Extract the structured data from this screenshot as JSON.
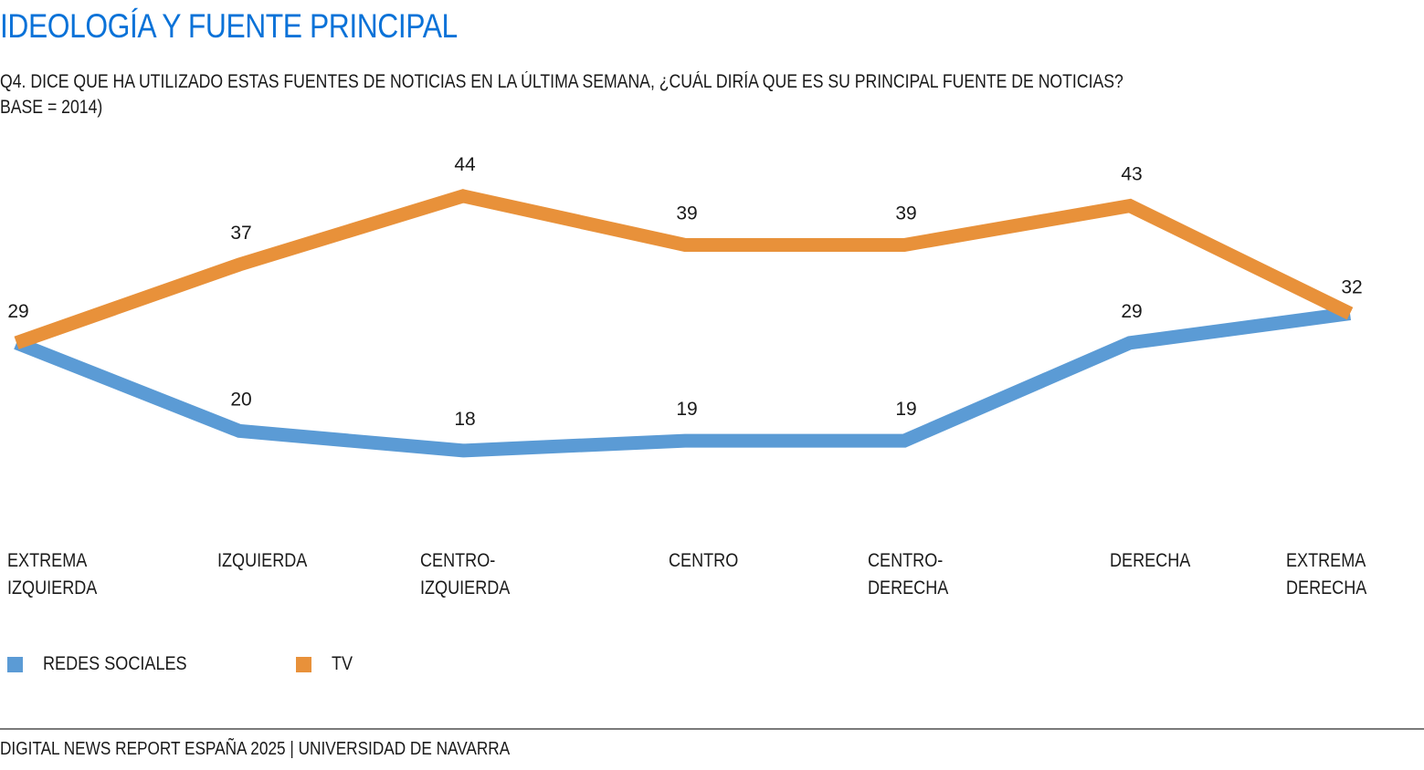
{
  "header": {
    "title": "IDEOLOGÍA Y FUENTE PRINCIPAL",
    "question": "Q4. DICE QUE HA UTILIZADO ESTAS FUENTES DE NOTICIAS EN LA ÚLTIMA SEMANA, ¿CUÁL DIRÍA QUE ES SU PRINCIPAL FUENTE DE NOTICIAS?",
    "base": "BASE = 2014)"
  },
  "footer": {
    "source": "DIGITAL NEWS REPORT ESPAÑA 2025 | UNIVERSIDAD DE NAVARRA"
  },
  "chart_data": {
    "type": "line",
    "title": "IDEOLOGÍA Y FUENTE PRINCIPAL",
    "xlabel": "",
    "ylabel": "",
    "grid": false,
    "legend_position": "bottom-left",
    "categories": [
      [
        "EXTREMA",
        "IZQUIERDA"
      ],
      [
        "IZQUIERDA"
      ],
      [
        "CENTRO-",
        "IZQUIERDA"
      ],
      [
        "CENTRO"
      ],
      [
        "CENTRO-",
        "DERECHA"
      ],
      [
        "DERECHA"
      ],
      [
        "EXTREMA",
        "DERECHA"
      ]
    ],
    "series": [
      {
        "name": "REDES SOCIALES",
        "color": "#5b9bd5",
        "values": [
          29,
          20,
          18,
          19,
          19,
          29,
          32
        ],
        "labels": [
          "",
          "20",
          "18",
          "19",
          "19",
          "29",
          ""
        ]
      },
      {
        "name": "TV",
        "color": "#e8913a",
        "values": [
          29,
          37,
          44,
          39,
          39,
          43,
          32
        ],
        "labels": [
          "29",
          "37",
          "44",
          "39",
          "39",
          "43",
          "32"
        ]
      }
    ]
  }
}
